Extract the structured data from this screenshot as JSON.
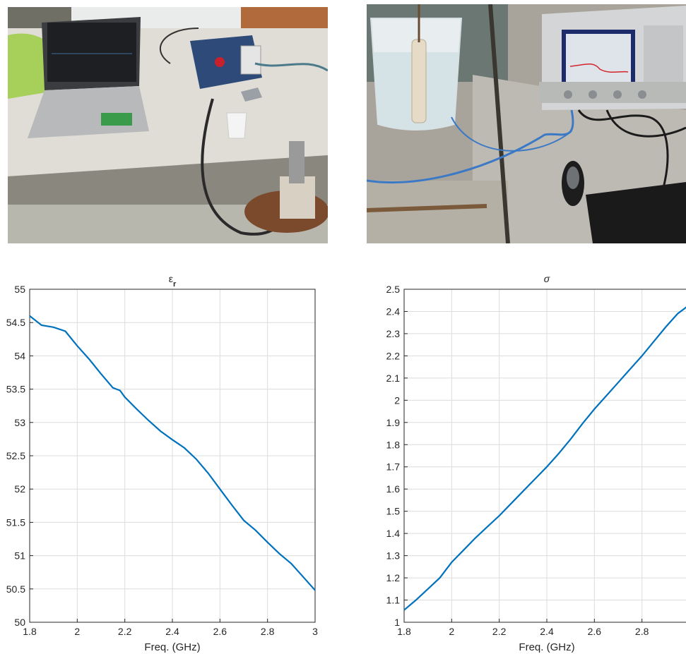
{
  "photos": [
    {
      "name": "lab-setup-laptop-vna-probe"
    },
    {
      "name": "liquid-beaker-probe-network-analyzer"
    }
  ],
  "colors": {
    "line": "#0072BD",
    "grid": "#dcdcdc",
    "axis": "#262626"
  },
  "chart_data": [
    {
      "type": "line",
      "title": "ε",
      "title_subscript": "r",
      "xlabel": "Freq. (GHz)",
      "ylabel": "",
      "xlim": [
        1.8,
        3.0
      ],
      "ylim": [
        50,
        55
      ],
      "xticks": [
        1.8,
        2,
        2.2,
        2.4,
        2.6,
        2.8,
        3
      ],
      "xtick_labels": [
        "1.8",
        "2",
        "2.2",
        "2.4",
        "2.6",
        "2.8",
        "3"
      ],
      "yticks": [
        50,
        50.5,
        51,
        51.5,
        52,
        52.5,
        53,
        53.5,
        54,
        54.5,
        55
      ],
      "ytick_labels": [
        "50",
        "50.5",
        "51",
        "51.5",
        "52",
        "52.5",
        "53",
        "53.5",
        "54",
        "54.5",
        "55"
      ],
      "grid": true,
      "series": [
        {
          "x": [
            1.8,
            1.85,
            1.9,
            1.95,
            2.0,
            2.05,
            2.1,
            2.15,
            2.18,
            2.2,
            2.25,
            2.3,
            2.35,
            2.4,
            2.45,
            2.5,
            2.55,
            2.6,
            2.65,
            2.7,
            2.75,
            2.8,
            2.85,
            2.9,
            2.95,
            3.0
          ],
          "y": [
            54.6,
            54.46,
            54.43,
            54.37,
            54.15,
            53.95,
            53.73,
            53.52,
            53.48,
            53.38,
            53.2,
            53.03,
            52.87,
            52.74,
            52.62,
            52.45,
            52.24,
            52.0,
            51.76,
            51.53,
            51.38,
            51.2,
            51.03,
            50.88,
            50.68,
            50.48
          ]
        }
      ]
    },
    {
      "type": "line",
      "title": "σ",
      "xlabel": "Freq. (GHz)",
      "ylabel": "",
      "xlim": [
        1.8,
        3.0
      ],
      "ylim": [
        1,
        2.5
      ],
      "xticks": [
        1.8,
        2,
        2.2,
        2.4,
        2.6,
        2.8
      ],
      "xtick_labels": [
        "1.8",
        "2",
        "2.2",
        "2.4",
        "2.6",
        "2.8"
      ],
      "yticks": [
        1,
        1.1,
        1.2,
        1.3,
        1.4,
        1.5,
        1.6,
        1.7,
        1.8,
        1.9,
        2,
        2.1,
        2.2,
        2.3,
        2.4,
        2.5
      ],
      "ytick_labels": [
        "1",
        "1.1",
        "1.2",
        "1.3",
        "1.4",
        "1.5",
        "1.6",
        "1.7",
        "1.8",
        "1.9",
        "2",
        "2.1",
        "2.2",
        "2.3",
        "2.4",
        "2.5"
      ],
      "grid": true,
      "series": [
        {
          "x": [
            1.8,
            1.85,
            1.9,
            1.95,
            2.0,
            2.05,
            2.1,
            2.15,
            2.2,
            2.25,
            2.3,
            2.35,
            2.4,
            2.45,
            2.5,
            2.55,
            2.6,
            2.65,
            2.7,
            2.75,
            2.8,
            2.85,
            2.9,
            2.95,
            3.0
          ],
          "y": [
            1.055,
            1.1,
            1.15,
            1.2,
            1.27,
            1.325,
            1.38,
            1.43,
            1.48,
            1.535,
            1.59,
            1.645,
            1.7,
            1.76,
            1.825,
            1.895,
            1.96,
            2.02,
            2.08,
            2.14,
            2.2,
            2.265,
            2.33,
            2.39,
            2.43
          ]
        }
      ]
    }
  ]
}
